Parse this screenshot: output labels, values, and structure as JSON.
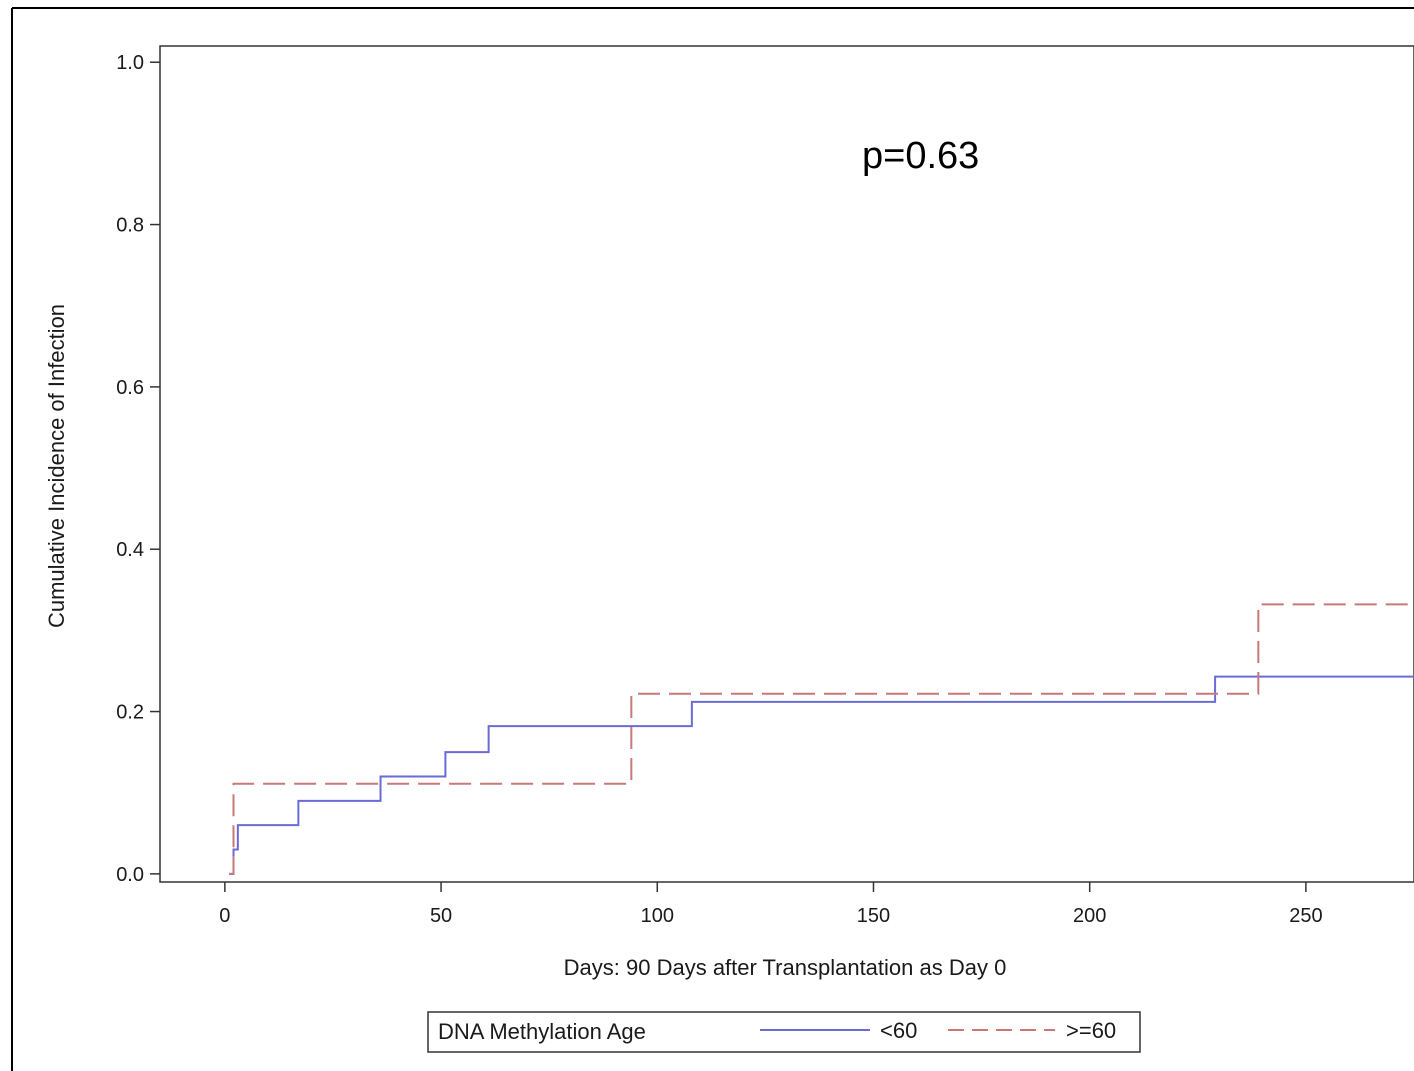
{
  "chart_data": {
    "type": "line",
    "step": true,
    "title": "",
    "xlabel": "Days: 90 Days after Transplantation as Day 0",
    "ylabel": "Cumulative Incidence of Infection",
    "xlim": [
      -15,
      275
    ],
    "ylim": [
      -0.01,
      1.02
    ],
    "xticks": [
      0,
      50,
      100,
      150,
      200,
      250
    ],
    "xtick_labels": [
      "0",
      "50",
      "100",
      "150",
      "200",
      "250"
    ],
    "yticks": [
      0.0,
      0.2,
      0.4,
      0.6,
      0.8,
      1.0
    ],
    "ytick_labels": [
      "0.0",
      "0.2",
      "0.4",
      "0.6",
      "0.8",
      "1.0"
    ],
    "grid": false,
    "annotation": "p=0.63",
    "legend": {
      "title": "DNA Methylation Age",
      "placement": "bottom"
    },
    "series": [
      {
        "name": "<60",
        "color": "#6b6bd8",
        "dash": "solid",
        "points": [
          [
            1,
            0.0
          ],
          [
            2,
            0.03
          ],
          [
            3,
            0.06
          ],
          [
            17,
            0.09
          ],
          [
            36,
            0.12
          ],
          [
            51,
            0.15
          ],
          [
            61,
            0.182
          ],
          [
            108,
            0.212
          ],
          [
            229,
            0.243
          ],
          [
            275,
            0.243
          ]
        ]
      },
      {
        "name": ">=60",
        "color": "#c9787a",
        "dash": "dashed",
        "points": [
          [
            1,
            0.0
          ],
          [
            2,
            0.111
          ],
          [
            94,
            0.222
          ],
          [
            239,
            0.332
          ],
          [
            275,
            0.332
          ]
        ]
      }
    ]
  }
}
